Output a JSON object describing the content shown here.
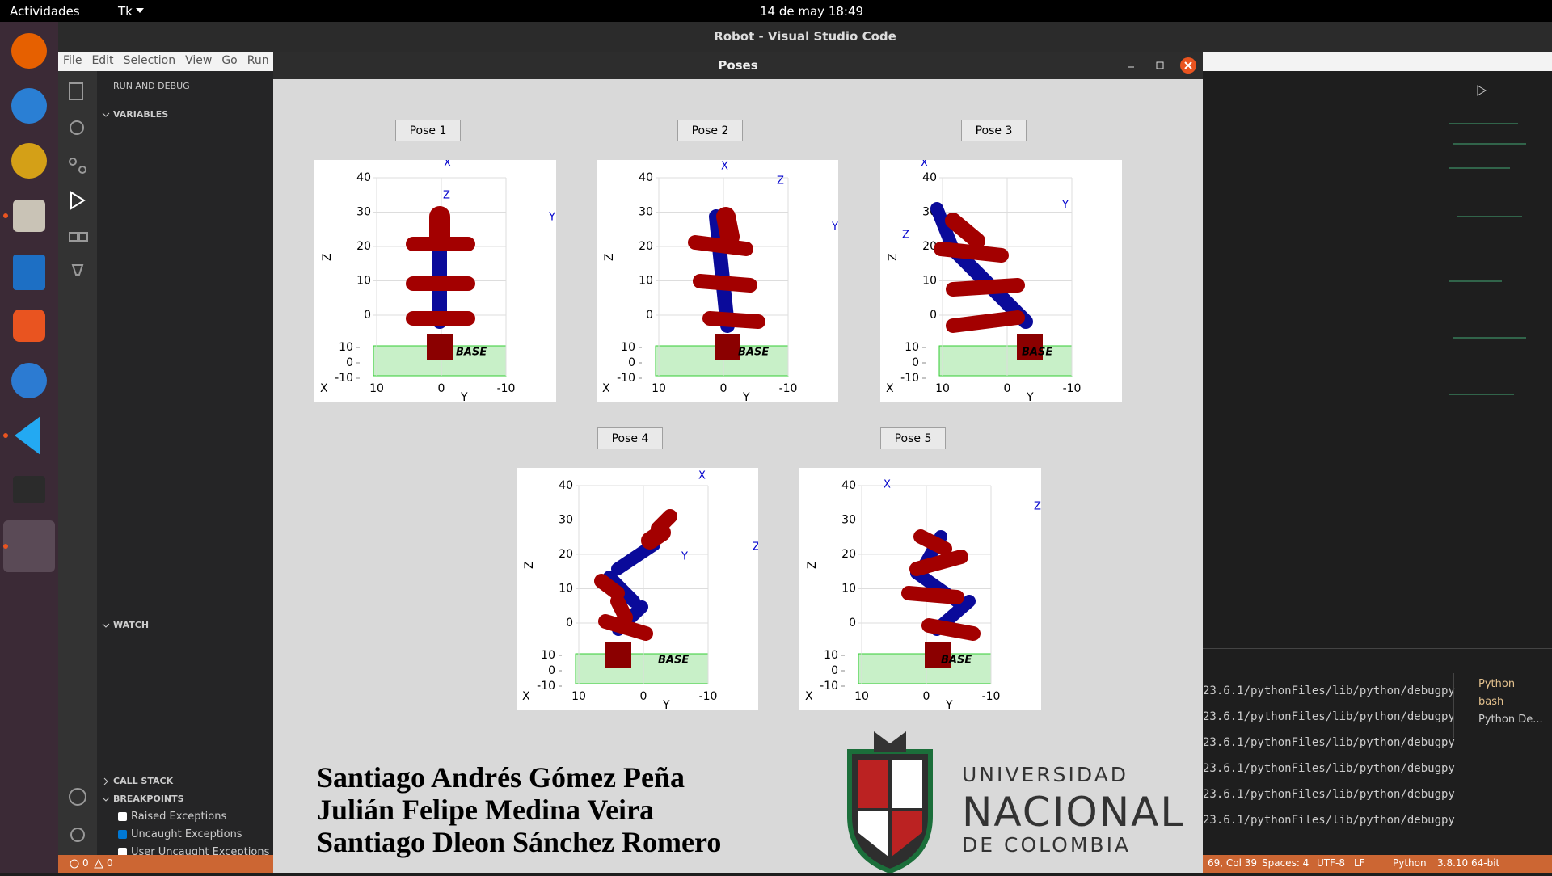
{
  "top_bar": {
    "activities": "Actividades",
    "app": "Tk",
    "clock": "14 de may  18:49"
  },
  "vscode": {
    "title": "Robot - Visual Studio Code",
    "menu": [
      "File",
      "Edit",
      "Selection",
      "View",
      "Go",
      "Run"
    ],
    "sidebar": {
      "header": "RUN AND DEBUG",
      "sections": [
        "VARIABLES",
        "WATCH",
        "CALL STACK",
        "BREAKPOINTS"
      ],
      "breakpoints": [
        {
          "label": "Raised Exceptions",
          "checked": false
        },
        {
          "label": "Uncaught Exceptions",
          "checked": true
        },
        {
          "label": "User Uncaught Exceptions",
          "checked": false
        }
      ]
    },
    "terminal": {
      "lines": [
        "23.6.1/pythonFiles/lib/python/debugpy",
        "23.6.1/pythonFiles/lib/python/debugpy",
        "23.6.1/pythonFiles/lib/python/debugpy",
        "23.6.1/pythonFiles/lib/python/debugpy",
        "23.6.1/pythonFiles/lib/python/debugpy",
        "23.6.1/pythonFiles/lib/python/debugpy"
      ],
      "tabs": [
        "Python",
        "bash",
        "Python De..."
      ]
    },
    "status_bar": {
      "errors": 0,
      "warnings": 0,
      "items": [
        "69, Col 39",
        "Spaces: 4",
        "UTF-8",
        "LF",
        "Python",
        "3.8.10 64-bit"
      ]
    }
  },
  "poses_window": {
    "title": "Poses",
    "buttons": [
      "Pose 1",
      "Pose 2",
      "Pose 3",
      "Pose 4",
      "Pose 5"
    ],
    "plot": {
      "z_label": "Z",
      "x_label": "X",
      "y_label": "Y",
      "base_label": "BASE",
      "z_ticks": [
        40,
        30,
        20,
        10,
        0
      ],
      "base_ticks": [
        10,
        0,
        -10
      ],
      "y_ticks": [
        10,
        0,
        -10
      ]
    },
    "authors": [
      "Santiago Andrés Gómez Peña",
      "Julián Felipe Medina Veira",
      "Santiago Dleon Sánchez Romero"
    ],
    "university": [
      "UNIVERSIDAD",
      "NACIONAL",
      "DE COLOMBIA"
    ]
  }
}
